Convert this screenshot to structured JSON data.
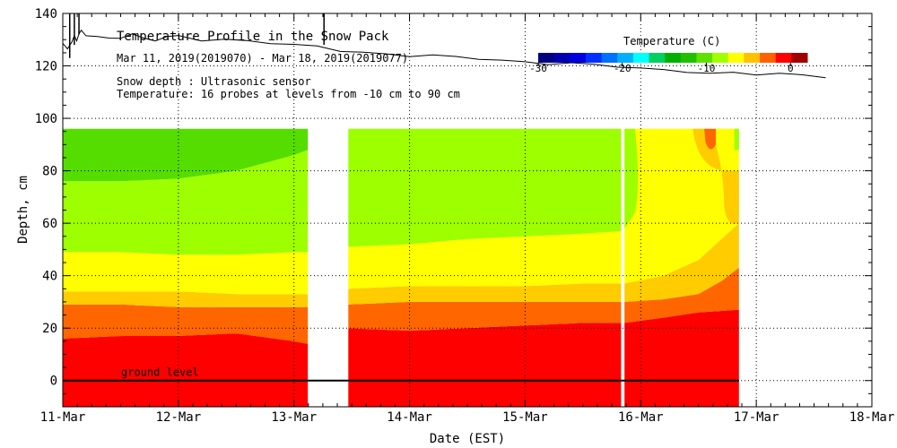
{
  "chart_data": {
    "type": "heatmap",
    "title": "Temperature Profile in the Snow Pack",
    "subtitle": "Mar 11, 2019(2019070) - Mar 18, 2019(2019077)",
    "info_lines": [
      "Snow depth : Ultrasonic sensor",
      "Temperature: 16 probes at levels from -10 cm to 90 cm"
    ],
    "xlabel": "Date (EST)",
    "ylabel": "Depth, cm",
    "xlim": [
      0,
      7
    ],
    "ylim": [
      -10,
      140
    ],
    "x_ticks": [
      {
        "value": 0,
        "label": "11-Mar"
      },
      {
        "value": 1,
        "label": "12-Mar"
      },
      {
        "value": 2,
        "label": "13-Mar"
      },
      {
        "value": 3,
        "label": "14-Mar"
      },
      {
        "value": 4,
        "label": "15-Mar"
      },
      {
        "value": 5,
        "label": "16-Mar"
      },
      {
        "value": 6,
        "label": "17-Mar"
      },
      {
        "value": 7,
        "label": "18-Mar"
      }
    ],
    "y_ticks": [
      0,
      20,
      40,
      60,
      80,
      100,
      120,
      140
    ],
    "grid": true,
    "ground_level_label": "ground level",
    "ground_level_value": 0,
    "colorbar": {
      "title": "Temperature (C)",
      "min": -30,
      "max": 2,
      "ticks": [
        {
          "value": -30,
          "label": "-30"
        },
        {
          "value": -20,
          "label": "-20"
        },
        {
          "value": -10,
          "label": "-10"
        },
        {
          "value": 0,
          "label": "0"
        }
      ],
      "colors": [
        "#000080",
        "#0000b0",
        "#0000e0",
        "#0030ff",
        "#0070ff",
        "#00b0ff",
        "#00ffff",
        "#00d060",
        "#00b000",
        "#20c000",
        "#60e000",
        "#a0ff00",
        "#ffff00",
        "#ffc000",
        "#ff6000",
        "#ff0000",
        "#a00000"
      ],
      "position": "top-right"
    },
    "band_colors": {
      "green": "#55dd00",
      "light_green": "#9dff00",
      "yellow": "#ffff00",
      "yellow_orange": "#ffcc00",
      "orange": "#ff6600",
      "red": "#ff0000",
      "dark_orange": "#ff6600"
    },
    "data_segments": [
      {
        "x_start": 0.0,
        "x_end": 2.12
      },
      {
        "x_start": 2.47,
        "x_end": 4.83
      },
      {
        "x_start": 4.86,
        "x_end": 5.85
      }
    ],
    "data_top_depth": 96,
    "gaps": [
      [
        2.12,
        2.47
      ],
      [
        4.83,
        4.86
      ]
    ],
    "isotherm_boundaries": {
      "red_top": {
        "x": [
          0.0,
          0.5,
          1.0,
          1.5,
          2.0,
          2.12,
          2.47,
          3.0,
          3.5,
          4.0,
          4.5,
          4.83,
          4.86,
          5.2,
          5.5,
          5.85
        ],
        "y": [
          16,
          17,
          17,
          18,
          15,
          14,
          20,
          19,
          20,
          21,
          22,
          22,
          22,
          24,
          26,
          27
        ]
      },
      "orange_top": {
        "x": [
          0.0,
          0.5,
          1.0,
          1.5,
          2.0,
          2.12,
          2.47,
          3.0,
          3.5,
          4.0,
          4.5,
          4.83,
          4.86,
          5.2,
          5.5,
          5.7,
          5.85
        ],
        "y": [
          29,
          29,
          28,
          28,
          28,
          28,
          29,
          30,
          30,
          30,
          30,
          30,
          30,
          31,
          33,
          38,
          43
        ]
      },
      "yellow_orange_top": {
        "x": [
          0.0,
          0.5,
          1.0,
          1.5,
          2.0,
          2.12,
          2.47,
          3.0,
          3.5,
          4.0,
          4.5,
          4.83,
          4.86,
          5.2,
          5.5,
          5.7,
          5.85
        ],
        "y": [
          34,
          34,
          34,
          33,
          33,
          33,
          35,
          36,
          36,
          36,
          37,
          37,
          37,
          40,
          46,
          54,
          60
        ]
      },
      "yellow_top": {
        "x": [
          0.0,
          0.5,
          1.0,
          1.5,
          2.0,
          2.12,
          2.47,
          3.0,
          3.5,
          4.0,
          4.5,
          4.83,
          4.86
        ],
        "y": [
          49,
          49,
          48,
          48,
          49,
          49,
          51,
          52,
          54,
          55,
          56,
          57,
          57
        ]
      },
      "light_green_top": {
        "x": [
          0.0,
          0.5,
          1.0,
          1.5,
          2.0,
          2.12
        ],
        "y": [
          76,
          76,
          77,
          80,
          86,
          88
        ]
      }
    },
    "snow_depth_series": {
      "x": [
        0.0,
        0.04,
        0.08,
        0.1,
        0.12,
        0.14,
        0.16,
        0.2,
        0.3,
        0.4,
        0.5,
        0.6,
        0.7,
        0.8,
        0.9,
        1.0,
        1.2,
        1.4,
        1.6,
        1.8,
        2.0,
        2.2,
        2.4,
        2.6,
        2.8,
        3.0,
        3.2,
        3.4,
        3.6,
        3.8,
        4.0,
        4.2,
        4.4,
        4.6,
        4.8,
        5.0,
        5.2,
        5.4,
        5.6,
        5.8,
        6.0,
        6.2,
        6.4,
        6.6
      ],
      "y": [
        128,
        127,
        129,
        131,
        130,
        132,
        133,
        132,
        131,
        130,
        131,
        132,
        130,
        130,
        131,
        131,
        130,
        130,
        129,
        129,
        128,
        127,
        126,
        125,
        124,
        124,
        124,
        123,
        123,
        122,
        121,
        121,
        121,
        120,
        120,
        119,
        118,
        118,
        117,
        117,
        117,
        117,
        116,
        116
      ]
    },
    "snow_depth_spikes": [
      {
        "x": 0.06,
        "y_low": 123,
        "y_high": 140
      },
      {
        "x": 0.1,
        "y_low": 128,
        "y_high": 140
      },
      {
        "x": 0.14,
        "y_low": 132,
        "y_high": 140
      },
      {
        "x": 2.26,
        "y_low": 128,
        "y_high": 140
      }
    ]
  }
}
